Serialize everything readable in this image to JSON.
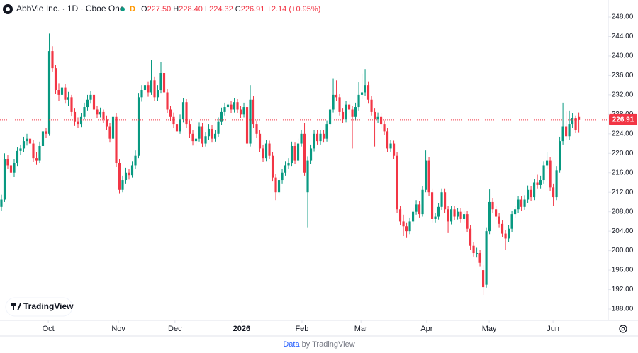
{
  "header": {
    "symbol": "AbbVie Inc. · 1D · Cboe One",
    "badge": "D",
    "o_label": "O",
    "o": "227.50",
    "h_label": "H",
    "h": "228.40",
    "l_label": "L",
    "l": "224.32",
    "c_label": "C",
    "c": "226.91",
    "change": "+2.14 (+0.95%)"
  },
  "logo": "TradingView",
  "footer": {
    "prefix": "Data",
    "suffix": "by TradingView"
  },
  "chart_data": {
    "type": "candlestick",
    "up_color": "#089981",
    "down_color": "#f23645",
    "grid": false,
    "xlim": [
      -0.44,
      190.2
    ],
    "ylim": [
      185.67,
      251.5
    ],
    "xticks": [
      {
        "value": 14.7,
        "label": "Oct"
      },
      {
        "value": 36.7,
        "label": "Nov"
      },
      {
        "value": 54.4,
        "label": "Dec"
      },
      {
        "value": 75.3,
        "label": "2026"
      },
      {
        "value": 94.2,
        "label": "Feb"
      },
      {
        "value": 112.7,
        "label": "Mar"
      },
      {
        "value": 133.3,
        "label": "Apr"
      },
      {
        "value": 152.9,
        "label": "May"
      },
      {
        "value": 172.9,
        "label": "Jun"
      }
    ],
    "yticks": [
      {
        "value": 188,
        "label": "188.00"
      },
      {
        "value": 192,
        "label": "192.00"
      },
      {
        "value": 196,
        "label": "196.00"
      },
      {
        "value": 200,
        "label": "200.00"
      },
      {
        "value": 204,
        "label": "204.00"
      },
      {
        "value": 208,
        "label": "208.00"
      },
      {
        "value": 212,
        "label": "212.00"
      },
      {
        "value": 216,
        "label": "216.00"
      },
      {
        "value": 220,
        "label": "220.00"
      },
      {
        "value": 224,
        "label": "224.00"
      },
      {
        "value": 228,
        "label": "228.00"
      },
      {
        "value": 232,
        "label": "232.00"
      },
      {
        "value": 236,
        "label": "236.00"
      },
      {
        "value": 240,
        "label": "240.00"
      },
      {
        "value": 244,
        "label": "244.00"
      },
      {
        "value": 248,
        "label": "248.00"
      }
    ],
    "ohlc": [
      [
        209.0,
        211.5,
        208.2,
        210.5
      ],
      [
        210.5,
        220.0,
        210.0,
        218.8
      ],
      [
        218.8,
        219.6,
        216.8,
        217.5
      ],
      [
        217.5,
        218.4,
        214.8,
        216.0
      ],
      [
        216.0,
        218.8,
        215.2,
        218.0
      ],
      [
        218.0,
        221.2,
        217.4,
        220.5
      ],
      [
        220.5,
        221.8,
        219.6,
        221.0
      ],
      [
        221.0,
        223.4,
        220.2,
        222.5
      ],
      [
        222.5,
        224.0,
        221.6,
        223.0
      ],
      [
        223.0,
        223.6,
        221.2,
        222.0
      ],
      [
        222.0,
        222.8,
        218.2,
        219.0
      ],
      [
        219.0,
        220.2,
        217.6,
        218.5
      ],
      [
        218.5,
        222.4,
        218.0,
        221.5
      ],
      [
        221.5,
        225.4,
        221.0,
        224.5
      ],
      [
        224.5,
        225.2,
        223.2,
        224.0
      ],
      [
        224.0,
        244.6,
        223.6,
        241.0
      ],
      [
        241.0,
        242.0,
        236.8,
        237.5
      ],
      [
        237.5,
        238.2,
        232.2,
        233.0
      ],
      [
        233.0,
        234.4,
        230.8,
        232.0
      ],
      [
        232.0,
        234.6,
        231.2,
        233.5
      ],
      [
        233.5,
        234.2,
        230.2,
        231.0
      ],
      [
        231.0,
        232.6,
        229.8,
        231.5
      ],
      [
        231.5,
        232.0,
        227.6,
        228.5
      ],
      [
        228.5,
        229.2,
        225.6,
        226.5
      ],
      [
        226.5,
        227.4,
        225.2,
        226.0
      ],
      [
        226.0,
        228.2,
        225.4,
        227.5
      ],
      [
        227.5,
        230.4,
        227.0,
        229.5
      ],
      [
        229.5,
        232.0,
        228.8,
        231.0
      ],
      [
        231.0,
        232.8,
        230.2,
        232.0
      ],
      [
        232.0,
        232.6,
        228.4,
        229.0
      ],
      [
        229.0,
        229.8,
        227.2,
        228.0
      ],
      [
        228.0,
        229.4,
        227.4,
        228.5
      ],
      [
        228.5,
        229.0,
        226.2,
        227.0
      ],
      [
        227.0,
        227.8,
        224.8,
        225.5
      ],
      [
        225.5,
        226.2,
        222.2,
        223.0
      ],
      [
        223.0,
        228.4,
        222.6,
        227.5
      ],
      [
        227.5,
        228.2,
        217.2,
        218.0
      ],
      [
        218.0,
        218.8,
        211.8,
        212.5
      ],
      [
        212.5,
        215.4,
        212.0,
        214.5
      ],
      [
        214.5,
        217.0,
        213.8,
        216.0
      ],
      [
        216.0,
        216.8,
        214.6,
        215.5
      ],
      [
        215.5,
        218.4,
        215.0,
        217.5
      ],
      [
        217.5,
        220.6,
        216.8,
        219.5
      ],
      [
        219.5,
        232.4,
        219.0,
        231.5
      ],
      [
        231.5,
        234.0,
        230.6,
        233.0
      ],
      [
        233.0,
        235.2,
        232.2,
        234.0
      ],
      [
        234.0,
        234.8,
        231.6,
        232.5
      ],
      [
        232.5,
        239.2,
        232.0,
        235.0
      ],
      [
        235.0,
        235.8,
        230.8,
        231.5
      ],
      [
        231.5,
        234.0,
        230.8,
        233.0
      ],
      [
        233.0,
        238.8,
        232.4,
        236.5
      ],
      [
        236.5,
        237.2,
        231.8,
        232.5
      ],
      [
        232.5,
        233.2,
        228.2,
        229.0
      ],
      [
        229.0,
        229.8,
        226.6,
        227.5
      ],
      [
        227.5,
        228.4,
        225.2,
        226.0
      ],
      [
        226.0,
        226.8,
        223.6,
        224.5
      ],
      [
        224.5,
        228.0,
        224.0,
        227.0
      ],
      [
        227.0,
        231.4,
        226.4,
        230.5
      ],
      [
        230.5,
        231.2,
        225.2,
        226.0
      ],
      [
        226.0,
        226.8,
        223.2,
        224.0
      ],
      [
        224.0,
        224.8,
        221.6,
        222.5
      ],
      [
        222.5,
        224.2,
        221.4,
        223.0
      ],
      [
        223.0,
        226.4,
        222.4,
        225.5
      ],
      [
        225.5,
        226.2,
        221.2,
        222.0
      ],
      [
        222.0,
        224.4,
        221.4,
        223.5
      ],
      [
        223.5,
        226.0,
        222.8,
        225.0
      ],
      [
        225.0,
        225.8,
        222.2,
        223.0
      ],
      [
        223.0,
        224.8,
        222.4,
        224.0
      ],
      [
        224.0,
        227.4,
        223.4,
        226.5
      ],
      [
        226.5,
        229.4,
        225.8,
        228.5
      ],
      [
        228.5,
        230.4,
        227.8,
        229.5
      ],
      [
        229.5,
        231.0,
        228.8,
        230.0
      ],
      [
        230.0,
        230.8,
        228.2,
        229.0
      ],
      [
        229.0,
        231.4,
        228.4,
        230.5
      ],
      [
        230.5,
        231.2,
        228.2,
        229.0
      ],
      [
        229.0,
        229.8,
        227.2,
        228.0
      ],
      [
        228.0,
        230.4,
        227.4,
        229.5
      ],
      [
        229.5,
        230.2,
        221.2,
        222.0
      ],
      [
        222.0,
        234.0,
        221.4,
        231.0
      ],
      [
        231.0,
        231.8,
        225.2,
        226.0
      ],
      [
        226.0,
        226.8,
        223.2,
        224.0
      ],
      [
        224.0,
        224.8,
        220.2,
        221.0
      ],
      [
        221.0,
        221.8,
        218.2,
        219.0
      ],
      [
        219.0,
        222.8,
        218.4,
        222.0
      ],
      [
        222.0,
        222.6,
        218.8,
        219.5
      ],
      [
        219.5,
        220.2,
        214.2,
        215.0
      ],
      [
        215.0,
        215.8,
        210.4,
        212.0
      ],
      [
        212.0,
        215.2,
        211.4,
        214.5
      ],
      [
        214.5,
        216.8,
        213.8,
        216.0
      ],
      [
        216.0,
        218.4,
        215.4,
        217.5
      ],
      [
        217.5,
        219.0,
        216.8,
        218.0
      ],
      [
        218.0,
        222.4,
        217.4,
        221.5
      ],
      [
        221.5,
        222.2,
        217.8,
        218.5
      ],
      [
        218.5,
        223.0,
        218.0,
        222.0
      ],
      [
        222.0,
        224.8,
        221.4,
        224.0
      ],
      [
        224.0,
        226.2,
        215.4,
        216.0
      ],
      [
        212.0,
        219.4,
        204.8,
        218.5
      ],
      [
        218.5,
        221.8,
        217.8,
        221.0
      ],
      [
        221.0,
        224.8,
        220.4,
        224.0
      ],
      [
        224.0,
        224.8,
        221.8,
        222.5
      ],
      [
        222.5,
        224.8,
        221.8,
        224.0
      ],
      [
        224.0,
        224.8,
        222.2,
        223.0
      ],
      [
        223.0,
        226.8,
        222.4,
        226.0
      ],
      [
        226.0,
        229.8,
        225.4,
        229.0
      ],
      [
        229.0,
        235.4,
        228.4,
        232.0
      ],
      [
        232.0,
        235.0,
        230.8,
        231.5
      ],
      [
        231.5,
        232.2,
        227.8,
        228.5
      ],
      [
        228.5,
        229.2,
        226.2,
        227.0
      ],
      [
        227.0,
        230.8,
        226.4,
        230.0
      ],
      [
        230.0,
        230.8,
        228.2,
        229.0
      ],
      [
        229.0,
        229.8,
        221.0,
        227.5
      ],
      [
        227.5,
        230.4,
        226.8,
        229.5
      ],
      [
        229.5,
        234.6,
        228.8,
        232.0
      ],
      [
        232.0,
        236.4,
        231.2,
        232.5
      ],
      [
        232.5,
        237.2,
        231.8,
        234.0
      ],
      [
        234.0,
        234.8,
        230.2,
        231.0
      ],
      [
        231.0,
        231.8,
        227.8,
        228.5
      ],
      [
        228.5,
        229.2,
        221.4,
        227.0
      ],
      [
        227.0,
        228.4,
        226.2,
        227.5
      ],
      [
        227.5,
        228.2,
        225.2,
        226.0
      ],
      [
        226.0,
        226.8,
        223.8,
        224.5
      ],
      [
        224.5,
        225.2,
        220.2,
        221.0
      ],
      [
        221.0,
        222.8,
        220.2,
        222.0
      ],
      [
        222.0,
        222.6,
        218.8,
        219.5
      ],
      [
        219.5,
        220.2,
        207.8,
        208.5
      ],
      [
        208.5,
        209.2,
        205.2,
        206.0
      ],
      [
        206.0,
        207.4,
        203.0,
        205.0
      ],
      [
        205.0,
        205.8,
        202.6,
        204.0
      ],
      [
        204.0,
        206.8,
        203.4,
        206.0
      ],
      [
        206.0,
        208.8,
        205.4,
        208.0
      ],
      [
        208.0,
        210.4,
        207.4,
        209.5
      ],
      [
        209.5,
        210.2,
        206.8,
        207.5
      ],
      [
        207.5,
        213.2,
        207.0,
        212.5
      ],
      [
        212.5,
        220.6,
        212.0,
        218.5
      ],
      [
        218.5,
        219.2,
        211.2,
        212.0
      ],
      [
        212.0,
        212.8,
        205.8,
        206.5
      ],
      [
        206.5,
        207.8,
        205.8,
        207.0
      ],
      [
        207.0,
        209.8,
        206.4,
        209.0
      ],
      [
        209.0,
        212.8,
        208.4,
        212.0
      ],
      [
        212.0,
        212.8,
        207.8,
        208.5
      ],
      [
        208.5,
        209.2,
        203.6,
        206.0
      ],
      [
        206.0,
        209.2,
        205.4,
        208.5
      ],
      [
        208.5,
        209.2,
        206.2,
        207.0
      ],
      [
        207.0,
        208.8,
        206.4,
        208.0
      ],
      [
        208.0,
        208.8,
        205.8,
        206.5
      ],
      [
        206.5,
        208.2,
        205.8,
        207.5
      ],
      [
        207.5,
        208.2,
        203.8,
        204.5
      ],
      [
        204.5,
        205.2,
        200.2,
        201.0
      ],
      [
        201.0,
        201.8,
        198.8,
        199.5
      ],
      [
        199.5,
        200.6,
        198.6,
        199.5
      ],
      [
        199.5,
        200.2,
        196.8,
        197.5
      ],
      [
        196.0,
        197.0,
        190.9,
        192.5
      ],
      [
        193.0,
        204.8,
        192.4,
        204.0
      ],
      [
        204.0,
        212.6,
        203.4,
        210.0
      ],
      [
        210.0,
        210.8,
        207.8,
        208.5
      ],
      [
        208.5,
        209.2,
        206.2,
        207.0
      ],
      [
        207.0,
        207.8,
        204.8,
        205.5
      ],
      [
        205.5,
        206.2,
        202.8,
        203.5
      ],
      [
        203.5,
        204.2,
        200.2,
        202.5
      ],
      [
        202.5,
        205.2,
        201.8,
        204.5
      ],
      [
        204.5,
        208.2,
        203.8,
        207.5
      ],
      [
        207.5,
        209.2,
        206.8,
        208.5
      ],
      [
        208.5,
        211.2,
        207.8,
        210.5
      ],
      [
        210.5,
        211.2,
        208.2,
        209.0
      ],
      [
        209.0,
        211.4,
        208.4,
        210.5
      ],
      [
        210.5,
        213.4,
        209.8,
        212.5
      ],
      [
        212.5,
        213.2,
        210.2,
        211.0
      ],
      [
        211.0,
        214.8,
        210.4,
        214.0
      ],
      [
        214.0,
        215.6,
        212.8,
        213.5
      ],
      [
        213.5,
        215.4,
        212.8,
        214.5
      ],
      [
        214.5,
        218.4,
        213.8,
        217.5
      ],
      [
        217.5,
        220.2,
        216.8,
        218.5
      ],
      [
        218.5,
        219.2,
        212.2,
        213.0
      ],
      [
        213.0,
        213.8,
        209.2,
        211.0
      ],
      [
        211.0,
        217.4,
        210.4,
        216.5
      ],
      [
        216.5,
        223.4,
        216.0,
        222.5
      ],
      [
        222.5,
        230.4,
        221.8,
        225.5
      ],
      [
        225.5,
        228.6,
        222.8,
        223.5
      ],
      [
        223.5,
        228.8,
        222.8,
        226.0
      ],
      [
        226.0,
        228.2,
        225.2,
        227.2
      ],
      [
        227.2,
        227.8,
        224.2,
        224.77
      ],
      [
        227.5,
        228.4,
        224.32,
        226.91
      ]
    ]
  }
}
